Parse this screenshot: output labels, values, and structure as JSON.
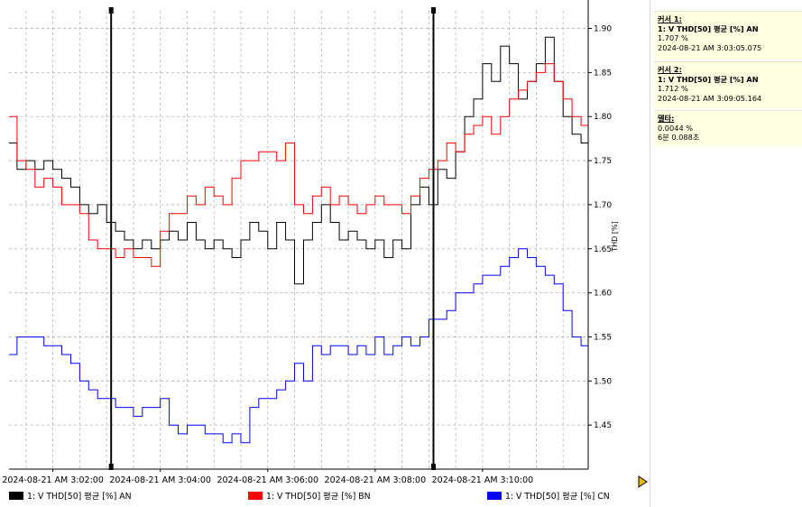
{
  "chart_data": {
    "type": "line",
    "ylabel": "THD [%]",
    "ylim": [
      1.4,
      1.92
    ],
    "yticks": [
      "1.45",
      "1.50",
      "1.55",
      "1.60",
      "1.65",
      "1.70",
      "1.75",
      "1.80",
      "1.85",
      "1.90"
    ],
    "xticks": [
      "2024-08-21 AM 3:02:00",
      "2024-08-21 AM 3:04:00",
      "2024-08-21 AM 3:06:00",
      "2024-08-21 AM 3:08:00",
      "2024-08-21 AM 3:10:00"
    ],
    "xrange_seconds_from_3_00": [
      71,
      718
    ],
    "xticks_seconds_from_3_00": [
      120,
      240,
      360,
      480,
      600
    ],
    "grid": true,
    "legend_position": "bottom",
    "series": [
      {
        "name": "1: V THD[50] 평균 [%] AN",
        "color": "#000000",
        "x": [
          71,
          80,
          90,
          100,
          110,
          120,
          130,
          140,
          150,
          160,
          170,
          180,
          190,
          200,
          210,
          220,
          230,
          240,
          250,
          260,
          270,
          280,
          290,
          300,
          310,
          320,
          330,
          340,
          350,
          360,
          370,
          380,
          390,
          400,
          410,
          420,
          430,
          440,
          450,
          460,
          470,
          480,
          490,
          500,
          510,
          520,
          530,
          540,
          550,
          560,
          570,
          580,
          590,
          600,
          610,
          620,
          630,
          640,
          650,
          660,
          670,
          680,
          690,
          700,
          710,
          718
        ],
        "y": [
          1.77,
          1.74,
          1.75,
          1.74,
          1.75,
          1.74,
          1.73,
          1.72,
          1.7,
          1.69,
          1.7,
          1.68,
          1.67,
          1.66,
          1.65,
          1.66,
          1.65,
          1.66,
          1.67,
          1.66,
          1.68,
          1.66,
          1.65,
          1.66,
          1.65,
          1.64,
          1.66,
          1.68,
          1.67,
          1.65,
          1.68,
          1.66,
          1.61,
          1.66,
          1.68,
          1.7,
          1.68,
          1.66,
          1.67,
          1.66,
          1.65,
          1.66,
          1.64,
          1.66,
          1.65,
          1.7,
          1.72,
          1.7,
          1.74,
          1.73,
          1.76,
          1.8,
          1.82,
          1.86,
          1.84,
          1.88,
          1.86,
          1.82,
          1.84,
          1.86,
          1.89,
          1.84,
          1.8,
          1.78,
          1.77,
          1.77
        ]
      },
      {
        "name": "1: V THD[50] 평균 [%] BN",
        "color": "#ff0000",
        "x": [
          71,
          80,
          90,
          100,
          110,
          120,
          130,
          140,
          150,
          160,
          170,
          180,
          190,
          200,
          210,
          220,
          230,
          240,
          250,
          260,
          270,
          280,
          290,
          300,
          310,
          320,
          330,
          340,
          350,
          360,
          370,
          380,
          390,
          400,
          410,
          420,
          430,
          440,
          450,
          460,
          470,
          480,
          490,
          500,
          510,
          520,
          530,
          540,
          550,
          560,
          570,
          580,
          590,
          600,
          610,
          620,
          630,
          640,
          650,
          660,
          670,
          680,
          690,
          700,
          710,
          718
        ],
        "y": [
          1.8,
          1.75,
          1.74,
          1.72,
          1.73,
          1.72,
          1.7,
          1.7,
          1.69,
          1.66,
          1.65,
          1.65,
          1.64,
          1.65,
          1.64,
          1.64,
          1.63,
          1.67,
          1.69,
          1.69,
          1.71,
          1.7,
          1.72,
          1.71,
          1.7,
          1.73,
          1.75,
          1.75,
          1.76,
          1.76,
          1.75,
          1.77,
          1.7,
          1.69,
          1.71,
          1.72,
          1.7,
          1.71,
          1.7,
          1.69,
          1.7,
          1.71,
          1.7,
          1.7,
          1.69,
          1.71,
          1.73,
          1.74,
          1.75,
          1.77,
          1.76,
          1.78,
          1.79,
          1.8,
          1.78,
          1.8,
          1.82,
          1.83,
          1.84,
          1.85,
          1.86,
          1.84,
          1.82,
          1.8,
          1.79,
          1.79
        ]
      },
      {
        "name": "1: V THD[50] 평균 [%] CN",
        "color": "#0000ff",
        "x": [
          71,
          80,
          90,
          100,
          110,
          120,
          130,
          140,
          150,
          160,
          170,
          180,
          190,
          200,
          210,
          220,
          230,
          240,
          250,
          260,
          270,
          280,
          290,
          300,
          310,
          320,
          330,
          340,
          350,
          360,
          370,
          380,
          390,
          400,
          410,
          420,
          430,
          440,
          450,
          460,
          470,
          480,
          490,
          500,
          510,
          520,
          530,
          540,
          550,
          560,
          570,
          580,
          590,
          600,
          610,
          620,
          630,
          640,
          650,
          660,
          670,
          680,
          690,
          700,
          710,
          718
        ],
        "y": [
          1.53,
          1.55,
          1.55,
          1.55,
          1.54,
          1.54,
          1.53,
          1.52,
          1.5,
          1.49,
          1.48,
          1.48,
          1.47,
          1.47,
          1.46,
          1.47,
          1.47,
          1.48,
          1.45,
          1.44,
          1.45,
          1.45,
          1.44,
          1.44,
          1.43,
          1.44,
          1.43,
          1.47,
          1.48,
          1.48,
          1.49,
          1.5,
          1.52,
          1.5,
          1.54,
          1.53,
          1.54,
          1.54,
          1.53,
          1.54,
          1.53,
          1.55,
          1.53,
          1.54,
          1.55,
          1.54,
          1.55,
          1.57,
          1.57,
          1.58,
          1.6,
          1.6,
          1.61,
          1.62,
          1.62,
          1.63,
          1.64,
          1.65,
          1.64,
          1.63,
          1.62,
          1.61,
          1.58,
          1.55,
          1.54,
          1.54
        ]
      }
    ],
    "cursors_seconds_from_3_00": [
      185.075,
      545.164
    ]
  },
  "cursor1": {
    "title": "커서 1:",
    "series": "1: V THD[50] 평균 [%] AN",
    "value": "1.707 %",
    "time": "2024-08-21 AM 3:03:05.075"
  },
  "cursor2": {
    "title": "커서 2:",
    "series": "1: V THD[50] 평균 [%] AN",
    "value": "1.712 %",
    "time": "2024-08-21 AM 3:09:05.164"
  },
  "delta": {
    "title": "델타:",
    "value": "0.0044 %",
    "time": "6분 0.088초"
  },
  "legend": [
    {
      "label": "1: V THD[50] 평균 [%] AN",
      "color": "#000000"
    },
    {
      "label": "1: V THD[50] 평균 [%] BN",
      "color": "#ff0000"
    },
    {
      "label": "1: V THD[50] 평균 [%] CN",
      "color": "#0000ff"
    }
  ],
  "colors": {
    "panel_background": "#ffffe1",
    "grid": "#b4b4b4",
    "arrow": "#e8b800"
  },
  "icons": {
    "scroll_button": "play-arrow-icon"
  }
}
